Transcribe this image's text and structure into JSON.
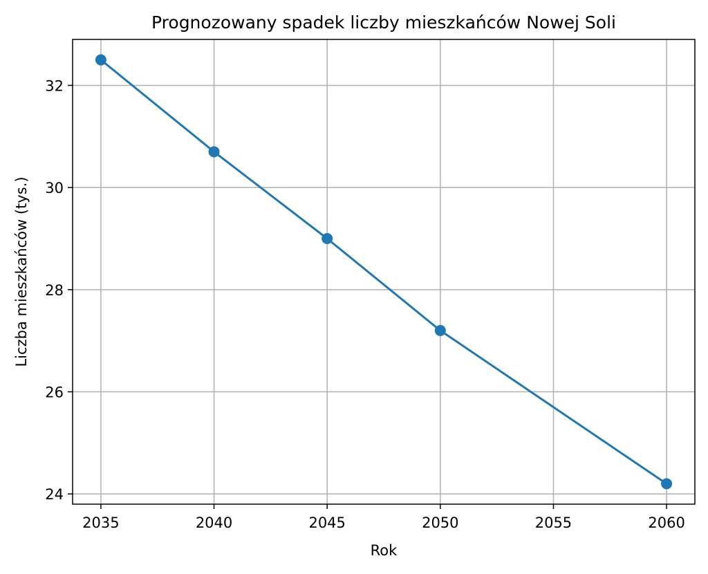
{
  "chart_data": {
    "type": "line",
    "title": "Prognozowany spadek liczby mieszkańców Nowej Soli",
    "xlabel": "Rok",
    "ylabel": "Liczba mieszkańców (tys.)",
    "x": [
      2035,
      2040,
      2045,
      2050,
      2060
    ],
    "series": [
      {
        "values": [
          32.5,
          30.7,
          29.0,
          27.2,
          24.2
        ]
      }
    ],
    "xlim": [
      2033.75,
      2061.25
    ],
    "ylim": [
      23.8,
      32.9
    ],
    "xticks": [
      2035,
      2040,
      2045,
      2050,
      2055,
      2060
    ],
    "xtick_labels": [
      "2035",
      "2040",
      "2045",
      "2050",
      "2055",
      "2060"
    ],
    "yticks": [
      24,
      26,
      28,
      30,
      32
    ],
    "ytick_labels": [
      "24",
      "26",
      "28",
      "30",
      "32"
    ],
    "grid": true,
    "markers": true,
    "colors": {
      "series": "#1f77b4",
      "grid": "#b0b0b0",
      "axes": "#000000"
    }
  }
}
